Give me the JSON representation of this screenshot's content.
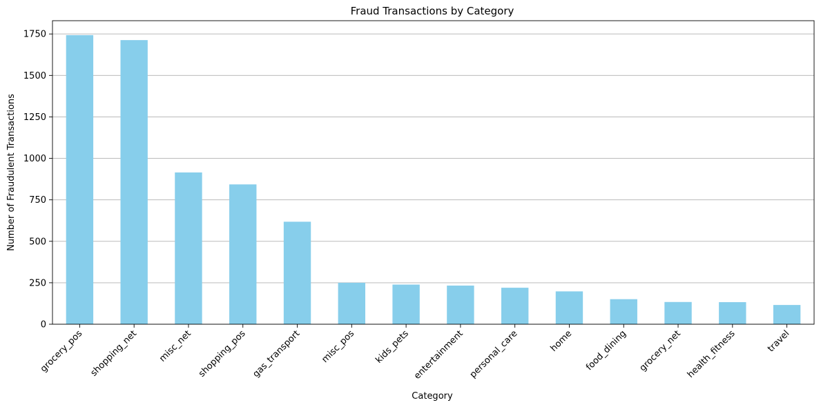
{
  "chart_data": {
    "type": "bar",
    "title": "Fraud Transactions by Category",
    "xlabel": "Category",
    "ylabel": "Number of Fraudulent Transactions",
    "categories": [
      "grocery_pos",
      "shopping_net",
      "misc_net",
      "shopping_pos",
      "gas_transport",
      "misc_pos",
      "kids_pets",
      "entertainment",
      "personal_care",
      "home",
      "food_dining",
      "grocery_net",
      "health_fitness",
      "travel"
    ],
    "values": [
      1743,
      1713,
      915,
      843,
      618,
      250,
      239,
      233,
      220,
      198,
      151,
      134,
      133,
      116
    ],
    "yticks": [
      0,
      250,
      500,
      750,
      1000,
      1250,
      1500,
      1750
    ],
    "ylim": [
      0,
      1830
    ],
    "grid": "y",
    "bar_color": "#87ceeb",
    "grid_color": "#b0b0b0"
  }
}
